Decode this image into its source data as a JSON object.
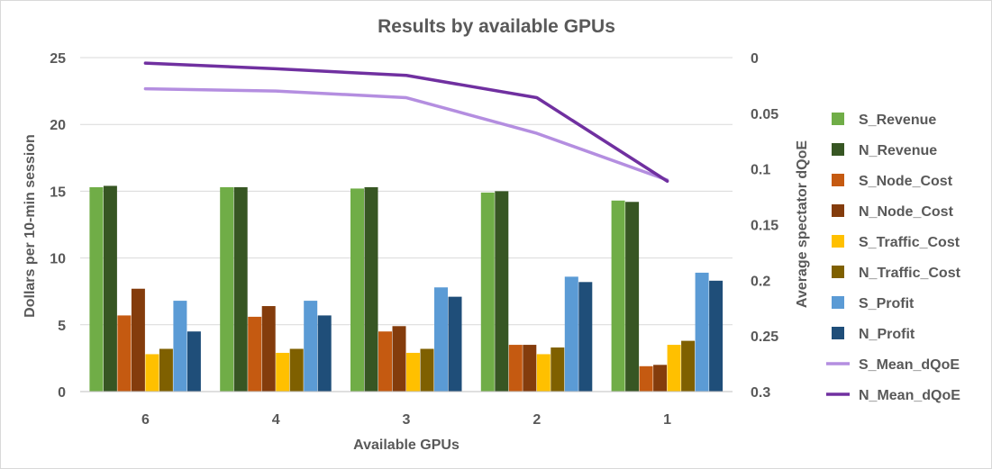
{
  "chart_data": {
    "type": "bar",
    "title": "Results by available GPUs",
    "xlabel": "Available GPUs",
    "ylabel": "Dollars per 10-min session",
    "y2label": "Average spectator dQoE",
    "categories": [
      "6",
      "4",
      "3",
      "2",
      "1"
    ],
    "ylim": [
      0,
      25
    ],
    "yticks": [
      "0",
      "5",
      "10",
      "15",
      "20",
      "25"
    ],
    "y2lim": [
      0,
      0.3
    ],
    "y2_reversed": true,
    "y2ticks": [
      "0",
      "0.05",
      "0.1",
      "0.15",
      "0.2",
      "0.25",
      "0.3"
    ],
    "grid": true,
    "legend_position": "right",
    "series": [
      {
        "name": "S_Revenue",
        "kind": "bar",
        "color": "#70ad47",
        "values": [
          15.3,
          15.3,
          15.2,
          14.9,
          14.3
        ]
      },
      {
        "name": "N_Revenue",
        "kind": "bar",
        "color": "#375623",
        "values": [
          15.4,
          15.3,
          15.3,
          15.0,
          14.2
        ]
      },
      {
        "name": "S_Node_Cost",
        "kind": "bar",
        "color": "#c55a11",
        "values": [
          5.7,
          5.6,
          4.5,
          3.5,
          1.9
        ]
      },
      {
        "name": "N_Node_Cost",
        "kind": "bar",
        "color": "#843c0c",
        "values": [
          7.7,
          6.4,
          4.9,
          3.5,
          2.0
        ]
      },
      {
        "name": "S_Traffic_Cost",
        "kind": "bar",
        "color": "#ffc000",
        "values": [
          2.8,
          2.9,
          2.9,
          2.8,
          3.5
        ]
      },
      {
        "name": "N_Traffic_Cost",
        "kind": "bar",
        "color": "#7f6000",
        "values": [
          3.2,
          3.2,
          3.2,
          3.3,
          3.8
        ]
      },
      {
        "name": "S_Profit",
        "kind": "bar",
        "color": "#5b9bd5",
        "values": [
          6.8,
          6.8,
          7.8,
          8.6,
          8.9
        ]
      },
      {
        "name": "N_Profit",
        "kind": "bar",
        "color": "#1f4e79",
        "values": [
          4.5,
          5.7,
          7.1,
          8.2,
          8.3
        ]
      },
      {
        "name": "S_Mean_dQoE",
        "kind": "line",
        "axis": "y2",
        "color": "#b48ee0",
        "values": [
          0.028,
          0.03,
          0.036,
          0.068,
          0.11
        ]
      },
      {
        "name": "N_Mean_dQoE",
        "kind": "line",
        "axis": "y2",
        "color": "#7030a0",
        "values": [
          0.005,
          0.01,
          0.016,
          0.036,
          0.111
        ]
      }
    ]
  }
}
